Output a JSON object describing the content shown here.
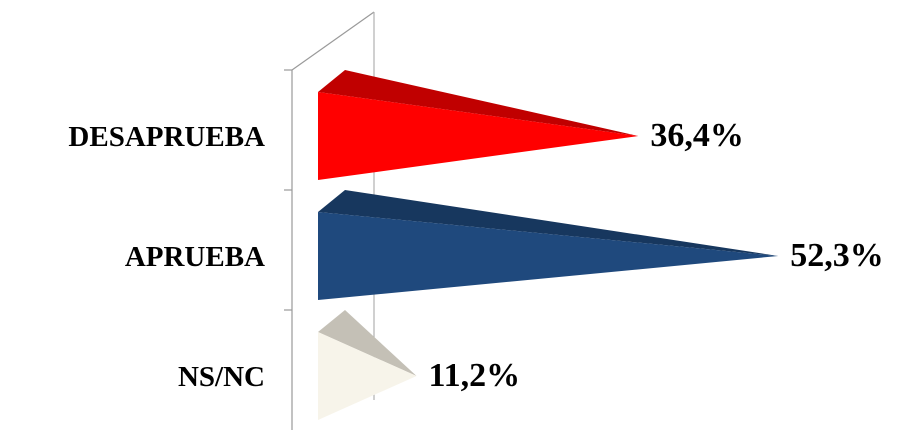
{
  "chart_data": {
    "type": "bar",
    "orientation": "horizontal",
    "style": "3d-cone",
    "categories": [
      "DESAPRUEBA",
      "APRUEBA",
      "NS/NC"
    ],
    "values": [
      36.4,
      52.3,
      11.2
    ],
    "value_labels": [
      "36,4%",
      "52,3%",
      "11,2%"
    ],
    "colors": [
      "#ff0000",
      "#1f497d",
      "#f7f4ea"
    ],
    "top_colors": [
      "#c00000",
      "#17375e",
      "#c4c0b6"
    ],
    "grid": false,
    "legend": "none"
  }
}
